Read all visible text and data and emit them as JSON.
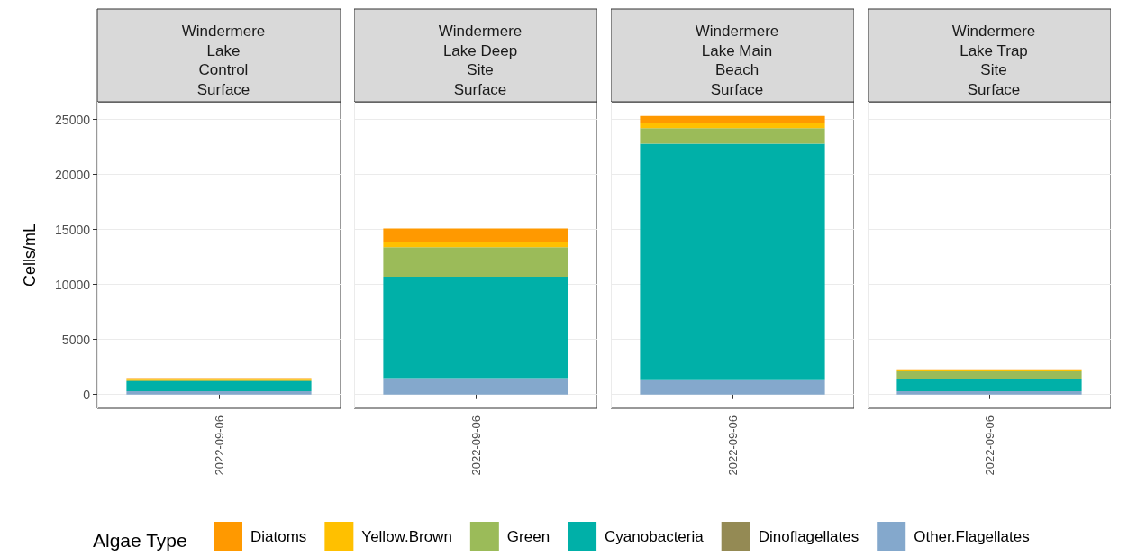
{
  "chart_data": [
    {
      "type": "bar",
      "stacked": true,
      "title": "Windermere\nLake\nControl\nSurface",
      "ylabel": "Cells/mL",
      "legend_title": "Algae Type",
      "legend": "bottom",
      "grid": true,
      "categories": [
        "2022-09-06"
      ],
      "ylim": [
        -1250,
        26600
      ],
      "yticks": [
        0,
        5000,
        10000,
        15000,
        20000,
        25000
      ],
      "series": [
        {
          "name": "Other.Flagellates",
          "color": "#84a8cc",
          "values": [
            300
          ]
        },
        {
          "name": "Dinoflagellates",
          "color": "#948a54",
          "values": [
            0
          ]
        },
        {
          "name": "Cyanobacteria",
          "color": "#00b0a8",
          "values": [
            900
          ]
        },
        {
          "name": "Green",
          "color": "#9bbb59",
          "values": [
            100
          ]
        },
        {
          "name": "Yellow.Brown",
          "color": "#ffc000",
          "values": [
            100
          ]
        },
        {
          "name": "Diatoms",
          "color": "#ff9900",
          "values": [
            100
          ]
        }
      ]
    },
    {
      "type": "bar",
      "stacked": true,
      "title": "Windermere\nLake Deep\nSite\nSurface",
      "grid": true,
      "tick_labels": "x",
      "categories": [
        "2022-09-06"
      ],
      "ylim": [
        -1250,
        26600
      ],
      "yticks": [
        0,
        5000,
        10000,
        15000,
        20000,
        25000
      ],
      "series": [
        {
          "color": "#84a8cc",
          "values": [
            1500
          ]
        },
        {
          "color": "#948a54",
          "values": [
            0
          ]
        },
        {
          "color": "#00b0a8",
          "values": [
            9200
          ]
        },
        {
          "color": "#9bbb59",
          "values": [
            2700
          ]
        },
        {
          "color": "#ffc000",
          "values": [
            500
          ]
        },
        {
          "color": "#ff9900",
          "values": [
            1200
          ]
        }
      ]
    },
    {
      "type": "bar",
      "stacked": true,
      "title": "Windermere\nLake Main\nBeach\nSurface",
      "grid": true,
      "tick_labels": "x",
      "categories": [
        "2022-09-06"
      ],
      "ylim": [
        -1250,
        26600
      ],
      "yticks": [
        0,
        5000,
        10000,
        15000,
        20000,
        25000
      ],
      "series": [
        {
          "color": "#84a8cc",
          "values": [
            1300
          ]
        },
        {
          "color": "#948a54",
          "values": [
            0
          ]
        },
        {
          "color": "#00b0a8",
          "values": [
            21500
          ]
        },
        {
          "color": "#9bbb59",
          "values": [
            1400
          ]
        },
        {
          "color": "#ffc000",
          "values": [
            500
          ]
        },
        {
          "color": "#ff9900",
          "values": [
            600
          ]
        }
      ]
    },
    {
      "type": "bar",
      "stacked": true,
      "title": "Windermere\nLake Trap\nSite\nSurface",
      "grid": true,
      "tick_labels": "x",
      "categories": [
        "2022-09-06"
      ],
      "ylim": [
        -1250,
        26600
      ],
      "yticks": [
        0,
        5000,
        10000,
        15000,
        20000,
        25000
      ],
      "series": [
        {
          "color": "#84a8cc",
          "values": [
            300
          ]
        },
        {
          "color": "#948a54",
          "values": [
            0
          ]
        },
        {
          "color": "#00b0a8",
          "values": [
            1100
          ]
        },
        {
          "color": "#9bbb59",
          "values": [
            700
          ]
        },
        {
          "color": "#ffc000",
          "values": [
            100
          ]
        },
        {
          "color": "#ff9900",
          "values": [
            100
          ]
        }
      ]
    }
  ]
}
